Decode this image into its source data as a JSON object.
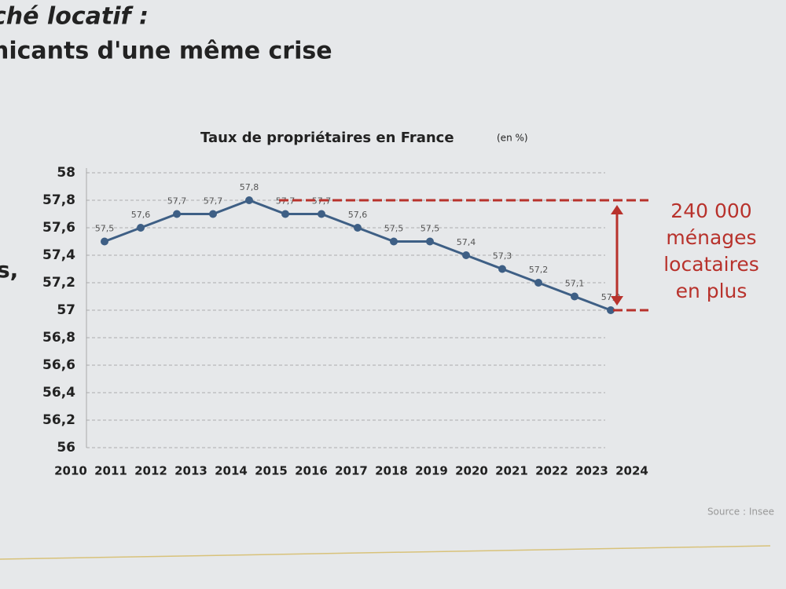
{
  "page": {
    "heading": [
      "ché locatif :",
      "nicants d'une même crise"
    ],
    "side_mark": "s,"
  },
  "chart_data": {
    "type": "line",
    "title": "Taux de propriétaires en France",
    "subtitle": "(en %)",
    "categories": [
      "2010",
      "2011",
      "2012",
      "2013",
      "2014",
      "2015",
      "2016",
      "2017",
      "2018",
      "2019",
      "2020",
      "2021",
      "2022",
      "2023",
      "2024"
    ],
    "series": [
      {
        "name": "Taux de propriétaires",
        "color": "#3e5f85",
        "values": [
          57.5,
          57.6,
          57.7,
          57.7,
          57.8,
          57.7,
          57.7,
          57.6,
          57.5,
          57.5,
          57.4,
          57.3,
          57.2,
          57.1,
          57.0
        ],
        "value_labels": [
          "57,5",
          "57,6",
          "57,7",
          "57,7",
          "57,8",
          "57,7",
          "57,7",
          "57,6",
          "57,5",
          "57,5",
          "57,4",
          "57,3",
          "57,2",
          "57,1",
          "57,0"
        ]
      }
    ],
    "ylim": [
      56,
      58
    ],
    "yticks": [
      56,
      {
        "value": 56.2,
        "label": "56,2"
      },
      {
        "value": 56.4,
        "label": "56,4"
      },
      {
        "value": 56.6,
        "label": "56,6"
      },
      {
        "value": 56.8,
        "label": "56,8"
      },
      57,
      {
        "value": 57.2,
        "label": "57,2"
      },
      {
        "value": 57.4,
        "label": "57,4"
      },
      {
        "value": 57.6,
        "label": "57,6"
      },
      {
        "value": 57.8,
        "label": "57,8"
      },
      58
    ],
    "grid": true,
    "annotation": {
      "text": [
        "240 000",
        "ménages",
        "locataires",
        "en plus"
      ],
      "range": [
        57.8,
        57.0
      ],
      "color": "#b8322c"
    },
    "source": "Source : Insee"
  }
}
